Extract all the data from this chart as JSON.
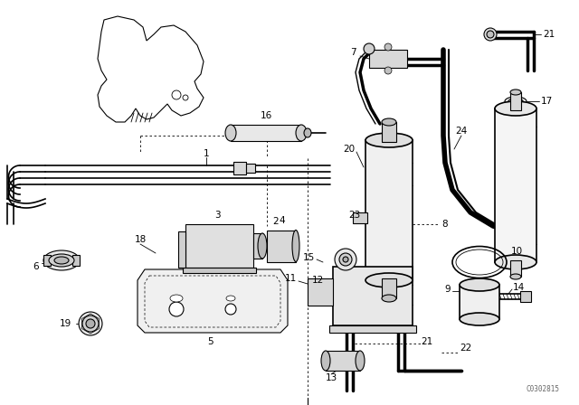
{
  "bg_color": "#ffffff",
  "line_color": "#000000",
  "fig_width": 6.4,
  "fig_height": 4.48,
  "dpi": 100,
  "watermark": "C0302815"
}
